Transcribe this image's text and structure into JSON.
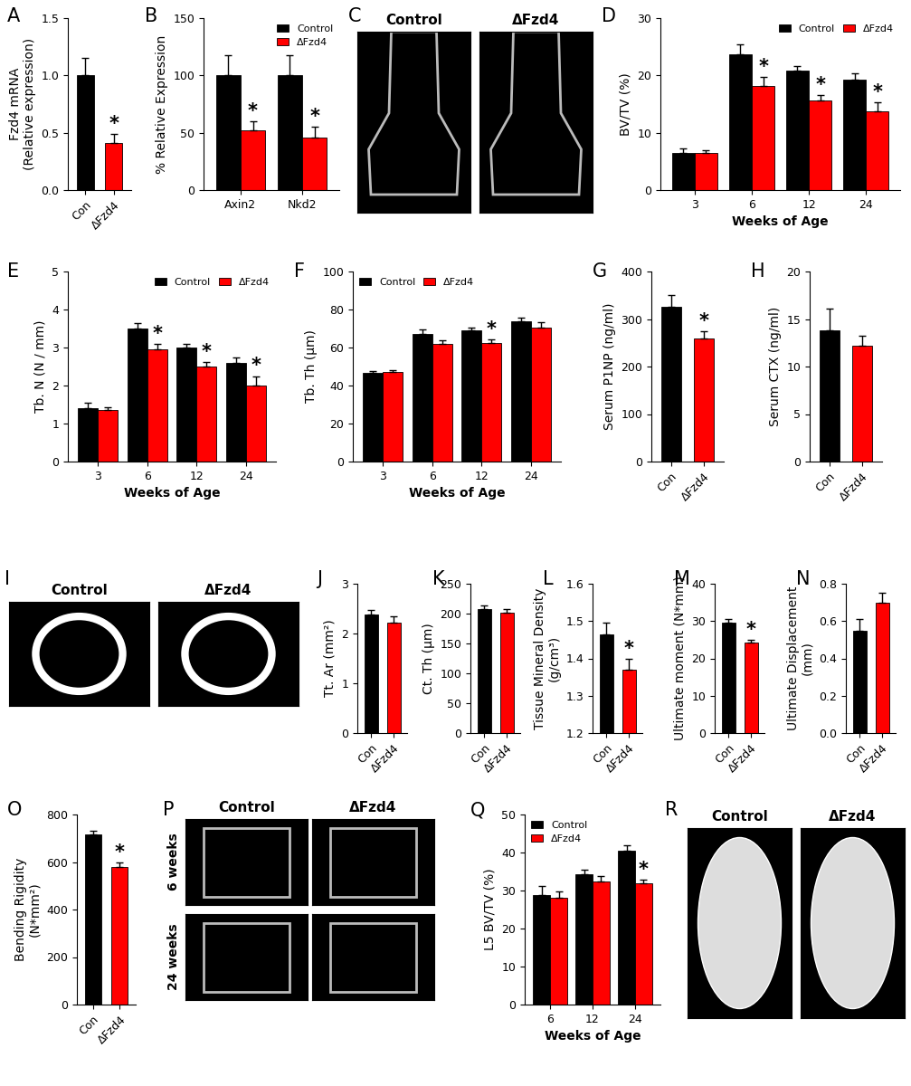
{
  "chart_data": [
    {
      "panel": "A",
      "type": "bar",
      "y_label": "Fzd4 mRNA\n(Relative expression)",
      "categories": [
        "Con",
        "ΔFzd4"
      ],
      "values": [
        1.0,
        0.41
      ],
      "errors": [
        0.15,
        0.08
      ],
      "colors": [
        "#000000",
        "#ff0000"
      ],
      "significance": [
        null,
        "*"
      ],
      "ylim": [
        0.0,
        1.5
      ],
      "yticks": [
        0.0,
        0.5,
        1.0,
        1.5
      ]
    },
    {
      "panel": "B",
      "type": "bar",
      "y_label": "% Relative Expression",
      "categories": [
        "Axin2",
        "Nkd2"
      ],
      "series": [
        {
          "name": "Control",
          "color": "#000000",
          "values": [
            100,
            100
          ],
          "errors": [
            18,
            18
          ],
          "significance": [
            null,
            null
          ]
        },
        {
          "name": "ΔFzd4",
          "color": "#ff0000",
          "values": [
            52,
            46
          ],
          "errors": [
            8,
            9
          ],
          "significance": [
            "*",
            "*"
          ]
        }
      ],
      "legend": "upper right",
      "ylim": [
        0,
        150
      ],
      "yticks": [
        0,
        50,
        100,
        150
      ]
    },
    {
      "panel": "D",
      "type": "bar",
      "x_label": "Weeks of Age",
      "y_label": "BV/TV (%)",
      "categories": [
        "3",
        "6",
        "12",
        "24"
      ],
      "series": [
        {
          "name": "Control",
          "color": "#000000",
          "values": [
            6.5,
            23.7,
            20.8,
            19.2
          ],
          "errors": [
            0.7,
            1.8,
            0.9,
            1.2
          ],
          "significance": [
            null,
            null,
            null,
            null
          ]
        },
        {
          "name": "ΔFzd4",
          "color": "#ff0000",
          "values": [
            6.4,
            18.2,
            15.6,
            13.7
          ],
          "errors": [
            0.5,
            1.5,
            1.0,
            1.6
          ],
          "significance": [
            null,
            "*",
            "*",
            "*"
          ]
        }
      ],
      "legend": "upper right",
      "ylim": [
        0,
        30
      ],
      "yticks": [
        0,
        10,
        20,
        30
      ]
    },
    {
      "panel": "E",
      "type": "bar",
      "x_label": "Weeks of Age",
      "y_label": "Tb. N (N / mm)",
      "categories": [
        "3",
        "6",
        "12",
        "24"
      ],
      "series": [
        {
          "name": "Control",
          "color": "#000000",
          "values": [
            1.4,
            3.5,
            3.0,
            2.6
          ],
          "errors": [
            0.15,
            0.15,
            0.1,
            0.15
          ],
          "significance": [
            null,
            null,
            null,
            null
          ]
        },
        {
          "name": "ΔFzd4",
          "color": "#ff0000",
          "values": [
            1.35,
            2.95,
            2.5,
            2.0
          ],
          "errors": [
            0.07,
            0.15,
            0.12,
            0.25
          ],
          "significance": [
            null,
            "*",
            "*",
            "*"
          ]
        }
      ],
      "legend": "upper right",
      "ylim": [
        0,
        5
      ],
      "yticks": [
        0,
        1,
        2,
        3,
        4,
        5
      ]
    },
    {
      "panel": "F",
      "type": "bar",
      "x_label": "Weeks of Age",
      "y_label": "Tb. Th (μm)",
      "categories": [
        "3",
        "6",
        "12",
        "24"
      ],
      "series": [
        {
          "name": "Control",
          "color": "#000000",
          "values": [
            46.5,
            67,
            69,
            74
          ],
          "errors": [
            1,
            2.5,
            1.5,
            1.5
          ],
          "significance": [
            null,
            null,
            null,
            null
          ]
        },
        {
          "name": "ΔFzd4",
          "color": "#ff0000",
          "values": [
            47,
            62,
            62.5,
            70.5
          ],
          "errors": [
            1,
            2,
            2,
            3
          ],
          "significance": [
            null,
            null,
            "*",
            null
          ]
        }
      ],
      "legend": "upper left",
      "ylim": [
        0,
        100
      ],
      "yticks": [
        0,
        20,
        40,
        60,
        80,
        100
      ]
    },
    {
      "panel": "G",
      "type": "bar",
      "y_label": "Serum P1NP (ng/ml)",
      "categories": [
        "Con",
        "ΔFzd4"
      ],
      "values": [
        325,
        260
      ],
      "errors": [
        25,
        15
      ],
      "colors": [
        "#000000",
        "#ff0000"
      ],
      "significance": [
        null,
        "*"
      ],
      "ylim": [
        0,
        400
      ],
      "yticks": [
        0,
        100,
        200,
        300,
        400
      ]
    },
    {
      "panel": "H",
      "type": "bar",
      "y_label": "Serum CTX (ng/ml)",
      "categories": [
        "Con",
        "ΔFzd4"
      ],
      "values": [
        13.8,
        12.2
      ],
      "errors": [
        2.3,
        1.0
      ],
      "colors": [
        "#000000",
        "#ff0000"
      ],
      "significance": [
        null,
        null
      ],
      "ylim": [
        0,
        20
      ],
      "yticks": [
        0,
        5,
        10,
        15,
        20
      ]
    },
    {
      "panel": "J",
      "type": "bar",
      "y_label": "Tt. Ar (mm²)",
      "categories": [
        "Con",
        "ΔFzd4"
      ],
      "values": [
        2.38,
        2.22
      ],
      "errors": [
        0.1,
        0.12
      ],
      "colors": [
        "#000000",
        "#ff0000"
      ],
      "significance": [
        null,
        null
      ],
      "ylim": [
        0,
        3
      ],
      "yticks": [
        0,
        1,
        2,
        3
      ]
    },
    {
      "panel": "K",
      "type": "bar",
      "y_label": "Ct. Th (μm)",
      "categories": [
        "Con",
        "ΔFzd4"
      ],
      "values": [
        208,
        201
      ],
      "errors": [
        6,
        7
      ],
      "colors": [
        "#000000",
        "#ff0000"
      ],
      "significance": [
        null,
        null
      ],
      "ylim": [
        0,
        250
      ],
      "yticks": [
        0,
        50,
        100,
        150,
        200,
        250
      ]
    },
    {
      "panel": "L",
      "type": "bar",
      "y_label": "Tissue Mineral Density\n(g/cm³)",
      "categories": [
        "Con",
        "ΔFzd4"
      ],
      "values": [
        1.465,
        1.37
      ],
      "errors": [
        0.03,
        0.03
      ],
      "colors": [
        "#000000",
        "#ff0000"
      ],
      "significance": [
        null,
        "*"
      ],
      "ylim": [
        1.2,
        1.6
      ],
      "yticks": [
        1.2,
        1.3,
        1.4,
        1.5,
        1.6
      ]
    },
    {
      "panel": "M",
      "type": "bar",
      "y_label": "Ultimate moment (N*mm)",
      "categories": [
        "Con",
        "ΔFzd4"
      ],
      "values": [
        29.5,
        24.2
      ],
      "errors": [
        1.0,
        0.8
      ],
      "colors": [
        "#000000",
        "#ff0000"
      ],
      "significance": [
        null,
        "*"
      ],
      "ylim": [
        0,
        40
      ],
      "yticks": [
        0,
        10,
        20,
        30,
        40
      ]
    },
    {
      "panel": "N",
      "type": "bar",
      "y_label": "Ultimate Displacement\n(mm)",
      "categories": [
        "Con",
        "ΔFzd4"
      ],
      "values": [
        0.55,
        0.7
      ],
      "errors": [
        0.06,
        0.05
      ],
      "colors": [
        "#000000",
        "#ff0000"
      ],
      "significance": [
        null,
        null
      ],
      "ylim": [
        0.0,
        0.8
      ],
      "yticks": [
        0.0,
        0.2,
        0.4,
        0.6,
        0.8
      ]
    },
    {
      "panel": "O",
      "type": "bar",
      "y_label": "Bending Rigidity\n(N*mm²)",
      "categories": [
        "Con",
        "ΔFzd4"
      ],
      "values": [
        718,
        580
      ],
      "errors": [
        15,
        18
      ],
      "colors": [
        "#000000",
        "#ff0000"
      ],
      "significance": [
        null,
        "*"
      ],
      "ylim": [
        0,
        800
      ],
      "yticks": [
        0,
        200,
        400,
        600,
        800
      ]
    },
    {
      "panel": "Q",
      "type": "bar",
      "x_label": "Weeks of Age",
      "y_label": "L5 BV/TV (%)",
      "categories": [
        "6",
        "12",
        "24"
      ],
      "series": [
        {
          "name": "Control",
          "color": "#000000",
          "values": [
            28.8,
            34.3,
            40.5
          ],
          "errors": [
            2.3,
            1.2,
            1.5
          ],
          "significance": [
            null,
            null,
            null
          ]
        },
        {
          "name": "ΔFzd4",
          "color": "#ff0000",
          "values": [
            28.0,
            32.5,
            31.8
          ],
          "errors": [
            1.8,
            1.2,
            1.0
          ],
          "significance": [
            null,
            null,
            "*"
          ]
        }
      ],
      "legend": "upper left",
      "ylim": [
        0,
        50
      ],
      "yticks": [
        0,
        10,
        20,
        30,
        40,
        50
      ]
    }
  ],
  "images": [
    {
      "panel": "C",
      "labels": [
        "Control",
        "ΔFzd4"
      ]
    },
    {
      "panel": "I",
      "labels": [
        "Control",
        "ΔFzd4"
      ]
    },
    {
      "panel": "P",
      "labels": [
        "Control",
        "ΔFzd4"
      ],
      "row_labels": [
        "6 weeks",
        "24 weeks"
      ]
    },
    {
      "panel": "R",
      "labels": [
        "Control",
        "ΔFzd4"
      ]
    }
  ]
}
